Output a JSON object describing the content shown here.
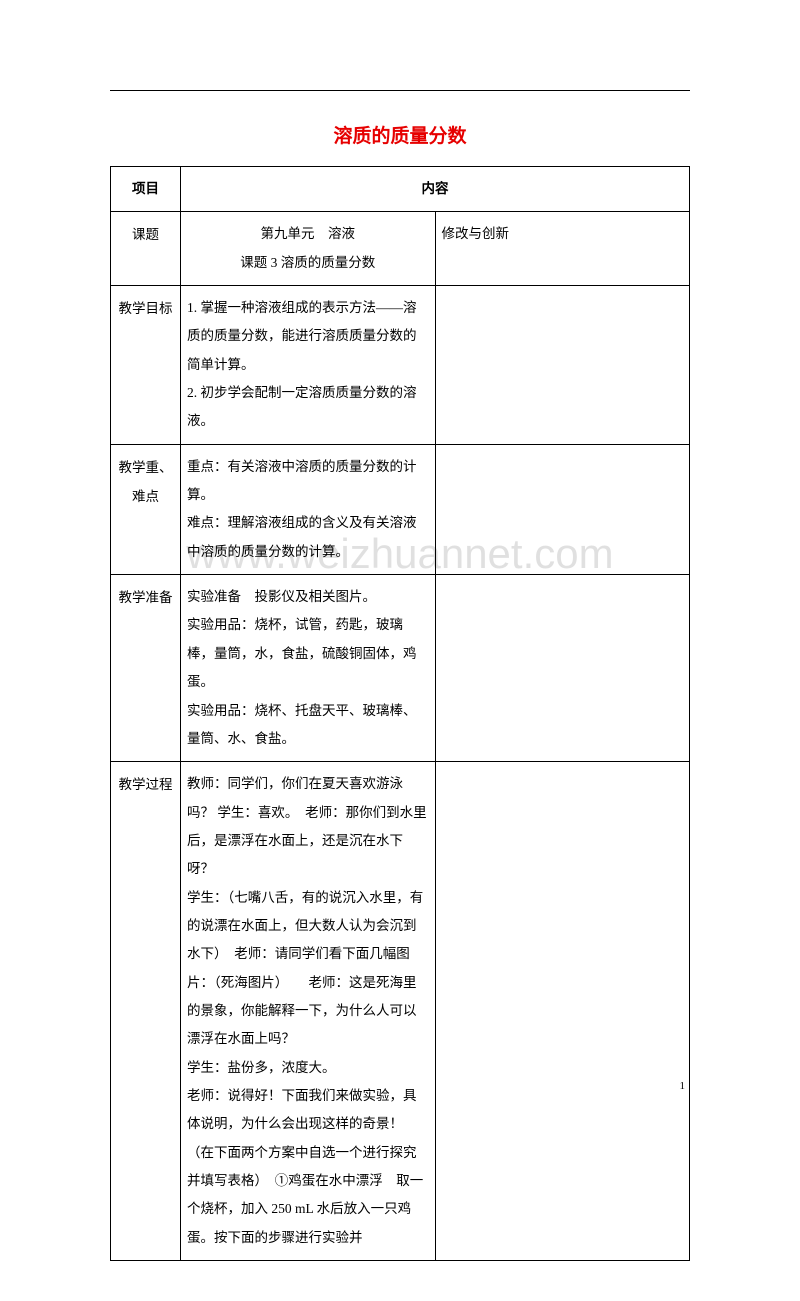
{
  "title": "溶质的质量分数",
  "watermark": "www.weizhuannet.com",
  "page_number": "1",
  "table": {
    "header": {
      "col1": "项目",
      "col2": "内容"
    },
    "rows": {
      "topic": {
        "label": "课题",
        "content": "第九单元　溶液\n课题 3 溶质的质量分数",
        "note": "修改与创新"
      },
      "objective": {
        "label": "教学目标",
        "content": "1. 掌握一种溶液组成的表示方法——溶质的质量分数，能进行溶质质量分数的简单计算。\n2. 初步学会配制一定溶质质量分数的溶液。"
      },
      "keypoints": {
        "label": "教学重、难点",
        "content": "重点：有关溶液中溶质的质量分数的计算。\n难点：理解溶液组成的含义及有关溶液中溶质的质量分数的计算。"
      },
      "preparation": {
        "label": "教学准备",
        "content": "实验准备　投影仪及相关图片。\n实验用品：烧杯，试管，药匙，玻璃棒，量筒，水，食盐，硫酸铜固体，鸡蛋。\n实验用品：烧杯、托盘天平、玻璃棒、量筒、水、食盐。"
      },
      "process": {
        "label": "教学过程",
        "content": "教师：同学们，你们在夏天喜欢游泳吗？ 学生：喜欢。　老师：那你们到水里后，是漂浮在水面上，还是沉在水下呀？\n学生：（七嘴八舌，有的说沉入水里，有的说漂在水面上，但大数人认为会沉到水下）　老师：请同学们看下面几幅图片：（死海图片）　　老师：这是死海里的景象，你能解释一下，为什么人可以漂浮在水面上吗？\n学生：盐份多，浓度大。\n老师：说得好！下面我们来做实验，具体说明，为什么会出现这样的奇景！\n（在下面两个方案中自选一个进行探究并填写表格）　①鸡蛋在水中漂浮　取一个烧杯，加入 250 mL 水后放入一只鸡蛋。按下面的步骤进行实验并"
      }
    }
  }
}
